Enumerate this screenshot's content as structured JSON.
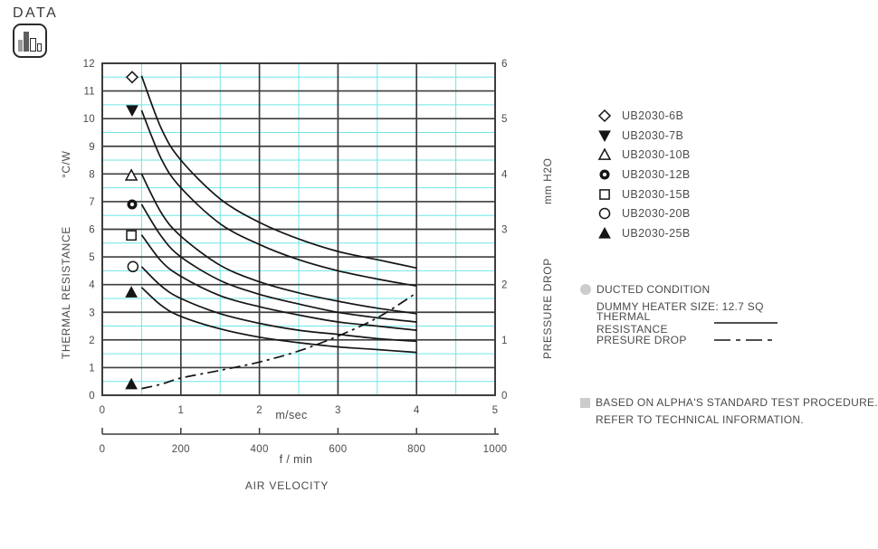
{
  "page": {
    "badge_label": "DATA"
  },
  "chart_data": {
    "type": "line",
    "title": "",
    "xlabel": "AIR VELOCITY",
    "axes": {
      "x_msec": {
        "unit": "m/sec",
        "min": 0,
        "max": 5,
        "ticks": [
          0,
          1,
          2,
          3,
          4,
          5
        ],
        "minor_step": 0.5
      },
      "x_fmin": {
        "unit": "f / min",
        "min": 0,
        "max": 1000,
        "ticks": [
          0,
          200,
          400,
          600,
          800,
          1000
        ]
      },
      "y_left": {
        "title": "THERMAL RESISTANCE",
        "unit": "°C/W",
        "min": 0,
        "max": 12,
        "ticks": [
          0,
          1,
          2,
          3,
          4,
          5,
          6,
          7,
          8,
          9,
          10,
          11,
          12
        ],
        "minor_step": 0.5
      },
      "y_right": {
        "title": "PRESSURE DROP",
        "unit": "mm H2O",
        "min": 0,
        "max": 6,
        "ticks": [
          0,
          1,
          2,
          3,
          4,
          5,
          6
        ]
      }
    },
    "x_samples": [
      0.5,
      0.75,
      1,
      1.5,
      2,
      2.5,
      3,
      3.5,
      4
    ],
    "series": [
      {
        "name": "UB2030-6B",
        "marker": "diamond-open",
        "axis": "left",
        "style": "solid",
        "in_legend": true,
        "marker_point": {
          "x": 0.38,
          "y": 11.5
        },
        "values": [
          11.55,
          9.65,
          8.5,
          7.1,
          6.25,
          5.65,
          5.2,
          4.9,
          4.6
        ]
      },
      {
        "name": "UB2030-7B",
        "marker": "triangle-down-filled",
        "axis": "left",
        "style": "solid",
        "in_legend": true,
        "marker_point": {
          "x": 0.38,
          "y": 10.3
        },
        "values": [
          10.3,
          8.55,
          7.5,
          6.2,
          5.45,
          4.9,
          4.5,
          4.2,
          3.95
        ]
      },
      {
        "name": "UB2030-10B",
        "marker": "triangle-open",
        "axis": "left",
        "style": "solid",
        "in_legend": true,
        "marker_point": {
          "x": 0.37,
          "y": 7.95
        },
        "values": [
          8.0,
          6.6,
          5.75,
          4.7,
          4.1,
          3.7,
          3.4,
          3.15,
          2.95
        ]
      },
      {
        "name": "UB2030-12B",
        "marker": "circle-dot",
        "axis": "left",
        "style": "solid",
        "in_legend": true,
        "marker_point": {
          "x": 0.38,
          "y": 6.9
        },
        "values": [
          6.9,
          5.75,
          5.0,
          4.15,
          3.65,
          3.3,
          3.0,
          2.8,
          2.65
        ]
      },
      {
        "name": "UB2030-15B",
        "marker": "square-open",
        "axis": "left",
        "style": "solid",
        "in_legend": true,
        "marker_point": {
          "x": 0.37,
          "y": 5.78
        },
        "values": [
          5.8,
          4.85,
          4.3,
          3.6,
          3.2,
          2.9,
          2.65,
          2.5,
          2.35
        ]
      },
      {
        "name": "UB2030-20B",
        "marker": "circle-open",
        "axis": "left",
        "style": "solid",
        "in_legend": true,
        "marker_point": {
          "x": 0.39,
          "y": 4.65
        },
        "values": [
          4.65,
          3.95,
          3.5,
          2.95,
          2.6,
          2.35,
          2.2,
          2.05,
          1.95
        ]
      },
      {
        "name": "UB2030-25B",
        "marker": "triangle-filled",
        "axis": "left",
        "style": "solid",
        "in_legend": true,
        "marker_point": {
          "x": 0.37,
          "y": 3.72
        },
        "values": [
          3.9,
          3.25,
          2.85,
          2.4,
          2.1,
          1.9,
          1.75,
          1.65,
          1.55
        ]
      },
      {
        "name": "PRESSURE DROP",
        "marker": "triangle-filled",
        "axis": "right",
        "style": "dashdot",
        "in_legend": false,
        "marker_point": {
          "x": 0.37,
          "y": 0.2
        },
        "values": [
          0.12,
          0.2,
          0.31,
          0.45,
          0.6,
          0.8,
          1.07,
          1.4,
          1.85
        ]
      }
    ],
    "legend_position": "right",
    "grid": "on"
  },
  "notes": {
    "condition": "DUCTED CONDITION",
    "heater": "DUMMY HEATER SIZE: 12.7 SQ",
    "thermal_label": "THERMAL RESISTANCE",
    "pressure_label": "PRESURE DROP"
  },
  "footnote": {
    "line1": "BASED ON ALPHA'S STANDARD TEST PROCEDURE.",
    "line2": "REFER TO TECHNICAL INFORMATION."
  },
  "colors": {
    "grid_major": "#3d3d3d",
    "grid_minor": "#6fe5e5",
    "curve": "#151515",
    "text": "#4a4a4a",
    "bullet_gray": "#cccccc"
  }
}
